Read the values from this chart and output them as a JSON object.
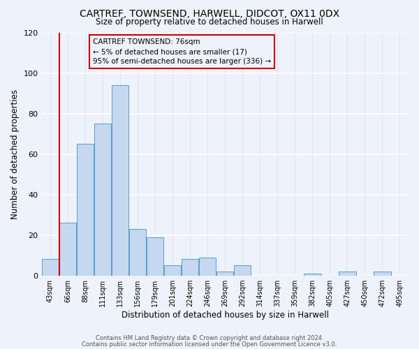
{
  "title": "CARTREF, TOWNSEND, HARWELL, DIDCOT, OX11 0DX",
  "subtitle": "Size of property relative to detached houses in Harwell",
  "xlabel": "Distribution of detached houses by size in Harwell",
  "ylabel": "Number of detached properties",
  "bin_labels": [
    "43sqm",
    "66sqm",
    "88sqm",
    "111sqm",
    "133sqm",
    "156sqm",
    "179sqm",
    "201sqm",
    "224sqm",
    "246sqm",
    "269sqm",
    "292sqm",
    "314sqm",
    "337sqm",
    "359sqm",
    "382sqm",
    "405sqm",
    "427sqm",
    "450sqm",
    "472sqm",
    "495sqm"
  ],
  "bar_values": [
    8,
    26,
    65,
    75,
    94,
    23,
    19,
    5,
    8,
    9,
    2,
    5,
    0,
    0,
    0,
    1,
    0,
    2,
    0,
    2,
    0
  ],
  "bar_color": "#c5d8f0",
  "bar_edgecolor": "#5b9bd5",
  "ylim": [
    0,
    120
  ],
  "yticks": [
    0,
    20,
    40,
    60,
    80,
    100,
    120
  ],
  "annotation_title": "CARTREF TOWNSEND: 76sqm",
  "annotation_line1": "← 5% of detached houses are smaller (17)",
  "annotation_line2": "95% of semi-detached houses are larger (336) →",
  "vline_color": "#cc0000",
  "annotation_box_edgecolor": "#cc0000",
  "background_color": "#eef2fa",
  "grid_color": "#d8dde8",
  "footer_line1": "Contains HM Land Registry data © Crown copyright and database right 2024.",
  "footer_line2": "Contains public sector information licensed under the Open Government Licence v3.0."
}
